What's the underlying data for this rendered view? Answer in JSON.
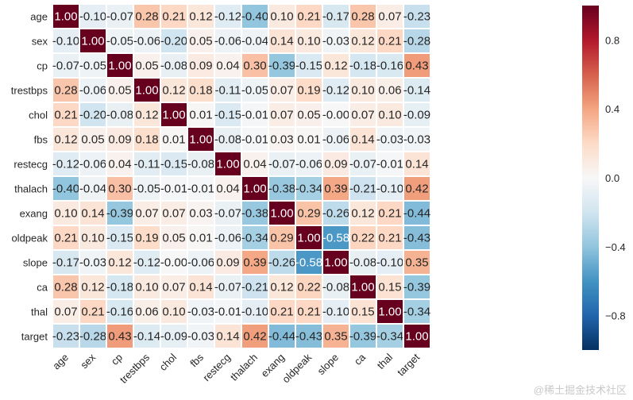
{
  "chart_data": {
    "type": "heatmap",
    "title": "",
    "labels": [
      "age",
      "sex",
      "cp",
      "trestbps",
      "chol",
      "fbs",
      "restecg",
      "thalach",
      "exang",
      "oldpeak",
      "slope",
      "ca",
      "thal",
      "target"
    ],
    "matrix": [
      [
        1.0,
        -0.1,
        -0.07,
        0.28,
        0.21,
        0.12,
        -0.12,
        -0.4,
        0.1,
        0.21,
        -0.17,
        0.28,
        0.07,
        -0.23
      ],
      [
        -0.1,
        1.0,
        -0.05,
        -0.06,
        -0.2,
        0.05,
        -0.06,
        -0.04,
        0.14,
        0.1,
        -0.03,
        0.12,
        0.21,
        -0.28
      ],
      [
        -0.07,
        -0.05,
        1.0,
        0.05,
        -0.08,
        0.09,
        0.04,
        0.3,
        -0.39,
        -0.15,
        0.12,
        -0.18,
        -0.16,
        0.43
      ],
      [
        0.28,
        -0.06,
        0.05,
        1.0,
        0.12,
        0.18,
        -0.11,
        -0.05,
        0.07,
        0.19,
        -0.12,
        0.1,
        0.06,
        -0.14
      ],
      [
        0.21,
        -0.2,
        -0.08,
        0.12,
        1.0,
        0.01,
        -0.15,
        -0.01,
        0.07,
        0.05,
        -0.0,
        0.07,
        0.1,
        -0.09
      ],
      [
        0.12,
        0.05,
        0.09,
        0.18,
        0.01,
        1.0,
        -0.08,
        -0.01,
        0.03,
        0.01,
        -0.06,
        0.14,
        -0.03,
        -0.03
      ],
      [
        -0.12,
        -0.06,
        0.04,
        -0.11,
        -0.15,
        -0.08,
        1.0,
        0.04,
        -0.07,
        -0.06,
        0.09,
        -0.07,
        -0.01,
        0.14
      ],
      [
        -0.4,
        -0.04,
        0.3,
        -0.05,
        -0.01,
        -0.01,
        0.04,
        1.0,
        -0.38,
        -0.34,
        0.39,
        -0.21,
        -0.1,
        0.42
      ],
      [
        0.1,
        0.14,
        -0.39,
        0.07,
        0.07,
        0.03,
        -0.07,
        -0.38,
        1.0,
        0.29,
        -0.26,
        0.12,
        0.21,
        -0.44
      ],
      [
        0.21,
        0.1,
        -0.15,
        0.19,
        0.05,
        0.01,
        -0.06,
        -0.34,
        0.29,
        1.0,
        -0.58,
        0.22,
        0.21,
        -0.43
      ],
      [
        -0.17,
        -0.03,
        0.12,
        -0.12,
        -0.0,
        -0.06,
        0.09,
        0.39,
        -0.26,
        -0.58,
        1.0,
        -0.08,
        -0.1,
        0.35
      ],
      [
        0.28,
        0.12,
        -0.18,
        0.1,
        0.07,
        0.14,
        -0.07,
        -0.21,
        0.12,
        0.22,
        -0.08,
        1.0,
        0.15,
        -0.39
      ],
      [
        0.07,
        0.21,
        -0.16,
        0.06,
        0.1,
        -0.03,
        -0.01,
        -0.1,
        0.21,
        0.21,
        -0.1,
        0.15,
        1.0,
        -0.34
      ],
      [
        -0.23,
        -0.28,
        0.43,
        -0.14,
        -0.09,
        -0.03,
        0.14,
        0.42,
        -0.44,
        -0.43,
        0.35,
        -0.39,
        -0.34,
        1.0
      ]
    ],
    "value_format": "two-decimal",
    "colormap": "RdBu_r",
    "vmin": -1.0,
    "vmax": 1.0,
    "colorbar_ticks": [
      0.8,
      0.4,
      0.0,
      -0.4,
      -0.8
    ],
    "colorbar_tick_labels": [
      "0.8",
      "0.4",
      "0.0",
      "−0.4",
      "−0.8"
    ],
    "xlabel": "",
    "ylabel": "",
    "grid": true,
    "colors": {
      "stops": [
        "#053061",
        "#2166ac",
        "#4393c3",
        "#92c5de",
        "#d1e5f0",
        "#f7f7f7",
        "#fddbc7",
        "#f4a582",
        "#d6604d",
        "#b2182b",
        "#67001f"
      ],
      "cell_border": "#ffffff",
      "dark_text": "#262626",
      "light_text": "#ffffff"
    }
  },
  "watermark": "@稀土掘金技术社区"
}
